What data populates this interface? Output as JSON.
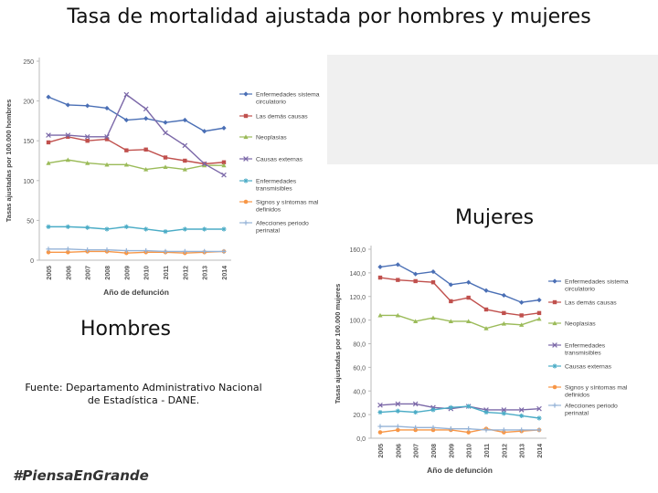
{
  "slide": {
    "title": "Tasa de mortalidad ajustada por hombres y mujeres",
    "label_hombres": "Hombres",
    "label_mujeres": "Mujeres",
    "source": "Fuente: Departamento Administrativo Nacional de Estadística - DANE.",
    "hashtag": "#PiensaEnGrande"
  },
  "chart_data": [
    {
      "type": "line",
      "title": "",
      "xlabel": "Año de defunción",
      "ylabel": "Tasas ajustadas por 100.000 hombres",
      "x": [
        "2005",
        "2006",
        "2007",
        "2008",
        "2009",
        "2010",
        "2011",
        "2012",
        "2013",
        "2014"
      ],
      "ylim": [
        0,
        250
      ],
      "yticks": [
        "0",
        "50",
        "100",
        "150",
        "200",
        "250"
      ],
      "grid": false,
      "legend": "right",
      "series": [
        {
          "name": "Enfermedades sistema circulatorio",
          "color": "#4a6fb5",
          "marker": "diamond",
          "values": [
            205,
            195,
            194,
            191,
            176,
            178,
            173,
            176,
            162,
            166
          ]
        },
        {
          "name": "Las demás causas",
          "color": "#c0504d",
          "marker": "square",
          "values": [
            148,
            155,
            150,
            152,
            138,
            139,
            129,
            125,
            121,
            123
          ]
        },
        {
          "name": "Neoplasias",
          "color": "#9bbb59",
          "marker": "triangle",
          "values": [
            122,
            126,
            122,
            120,
            120,
            114,
            117,
            114,
            119,
            119
          ]
        },
        {
          "name": "Causas externas",
          "color": "#7b68a8",
          "marker": "cross",
          "values": [
            157,
            157,
            155,
            155,
            208,
            190,
            160,
            144,
            121,
            107
          ]
        },
        {
          "name": "Enfermedades transmisibles",
          "color": "#4bacc6",
          "marker": "star",
          "values": [
            42,
            42,
            41,
            39,
            42,
            39,
            36,
            39,
            39,
            39
          ]
        },
        {
          "name": "Signos y síntomas mal definidos",
          "color": "#f79646",
          "marker": "circle",
          "values": [
            10,
            10,
            11,
            11,
            9,
            10,
            10,
            9,
            10,
            11
          ]
        },
        {
          "name": "Afecciones periodo perinatal",
          "color": "#95b3d7",
          "marker": "plus",
          "values": [
            14,
            14,
            13,
            13,
            12,
            12,
            11,
            11,
            11,
            11
          ]
        }
      ]
    },
    {
      "type": "line",
      "title": "",
      "xlabel": "Año de defunción",
      "ylabel": "Tasas ajustadas por 100.000 mujeres",
      "x": [
        "2005",
        "2006",
        "2007",
        "2008",
        "2009",
        "2010",
        "2011",
        "2012",
        "2013",
        "2014"
      ],
      "ylim": [
        0,
        160
      ],
      "yticks": [
        "0,0",
        "20,0",
        "40,0",
        "60,0",
        "80,0",
        "100,0",
        "120,0",
        "140,0",
        "160,0"
      ],
      "grid": false,
      "legend": "right",
      "series": [
        {
          "name": "Enfermedades sistema circulatorio",
          "color": "#4a6fb5",
          "marker": "diamond",
          "values": [
            145,
            147,
            139,
            141,
            130,
            132,
            125,
            121,
            115,
            117
          ]
        },
        {
          "name": "Las demás causas",
          "color": "#c0504d",
          "marker": "square",
          "values": [
            136,
            134,
            133,
            132,
            116,
            119,
            109,
            106,
            104,
            106
          ]
        },
        {
          "name": "Neoplasias",
          "color": "#9bbb59",
          "marker": "triangle",
          "values": [
            104,
            104,
            99,
            102,
            99,
            99,
            93,
            97,
            96,
            101
          ]
        },
        {
          "name": "Enfermedades transmisibles",
          "color": "#7b68a8",
          "marker": "cross",
          "values": [
            28,
            29,
            29,
            26,
            25,
            27,
            24,
            24,
            24,
            25
          ]
        },
        {
          "name": "Causas externas",
          "color": "#4bacc6",
          "marker": "star",
          "values": [
            22,
            23,
            22,
            24,
            26,
            27,
            22,
            21,
            19,
            17
          ]
        },
        {
          "name": "Signos y síntomas mal definidos",
          "color": "#f79646",
          "marker": "circle",
          "values": [
            5,
            7,
            7,
            7,
            7,
            5,
            8,
            5,
            6,
            7
          ]
        },
        {
          "name": "Afecciones periodo perinatal",
          "color": "#95b3d7",
          "marker": "plus",
          "values": [
            10,
            10,
            9,
            9,
            8,
            8,
            7,
            7,
            7,
            7
          ]
        }
      ]
    }
  ]
}
